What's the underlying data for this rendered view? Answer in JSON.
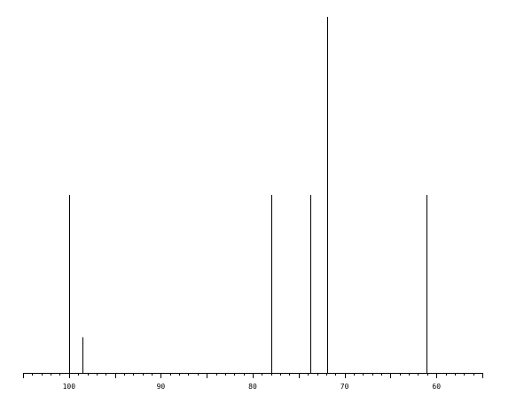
{
  "chart_data": {
    "type": "bar",
    "title": "",
    "xlabel": "",
    "ylabel": "",
    "xlim": [
      105,
      55
    ],
    "x_reversed": true,
    "ylim": [
      0,
      1
    ],
    "grid": false,
    "x_ticks": [
      100,
      90,
      80,
      70,
      60
    ],
    "x_tick_labels": [
      "100",
      "90",
      "80",
      "70",
      "60"
    ],
    "minor_tick_step": 1,
    "mid_tick_step": 5,
    "peaks": [
      {
        "x": 100.0,
        "y": 0.5
      },
      {
        "x": 98.5,
        "y": 0.1
      },
      {
        "x": 78.0,
        "y": 0.5
      },
      {
        "x": 73.7,
        "y": 0.5
      },
      {
        "x": 71.9,
        "y": 1.0
      },
      {
        "x": 61.1,
        "y": 0.5
      }
    ],
    "color": "#000000"
  }
}
